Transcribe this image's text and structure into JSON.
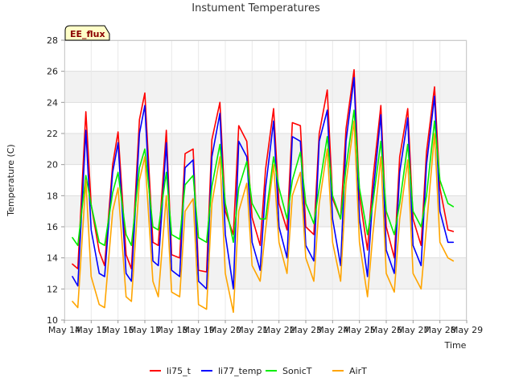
{
  "chart_data": {
    "type": "line",
    "title": "Instument Temperatures",
    "xlabel": "Time",
    "ylabel": "Temperature (C)",
    "badge": "EE_flux",
    "ylim": [
      10,
      28
    ],
    "yticks": [
      10,
      12,
      14,
      16,
      18,
      20,
      22,
      24,
      26,
      28
    ],
    "xlim": [
      14,
      29
    ],
    "xticks": [
      {
        "value": 14,
        "label": "May 14"
      },
      {
        "value": 15,
        "label": "May 15"
      },
      {
        "value": 16,
        "label": "May 16"
      },
      {
        "value": 17,
        "label": "May 17"
      },
      {
        "value": 18,
        "label": "May 18"
      },
      {
        "value": 19,
        "label": "May 19"
      },
      {
        "value": 20,
        "label": "May 20"
      },
      {
        "value": 21,
        "label": "May 21"
      },
      {
        "value": 22,
        "label": "May 22"
      },
      {
        "value": 23,
        "label": "May 23"
      },
      {
        "value": 24,
        "label": "May 24"
      },
      {
        "value": 25,
        "label": "May 25"
      },
      {
        "value": 26,
        "label": "May 26"
      },
      {
        "value": 27,
        "label": "May 27"
      },
      {
        "value": 28,
        "label": "May 28"
      },
      {
        "value": 29,
        "label": "May 29"
      }
    ],
    "grid": true,
    "legend_position": "bottom",
    "colors": {
      "li75_t": "#ff0000",
      "li77_temp": "#0000ff",
      "SonicT": "#00ee00",
      "AirT": "#ffa500"
    },
    "series": [
      {
        "name": "li75_t",
        "color": "#ff0000",
        "x": [
          14.3,
          14.5,
          14.8,
          15.0,
          15.3,
          15.5,
          15.8,
          16.0,
          16.3,
          16.5,
          16.8,
          17.0,
          17.3,
          17.5,
          17.8,
          18.0,
          18.3,
          18.5,
          18.8,
          19.0,
          19.3,
          19.5,
          19.8,
          20.0,
          20.3,
          20.5,
          20.8,
          21.0,
          21.3,
          21.5,
          21.8,
          22.0,
          22.3,
          22.5,
          22.8,
          23.0,
          23.3,
          23.5,
          23.8,
          24.0,
          24.3,
          24.5,
          24.8,
          25.0,
          25.3,
          25.5,
          25.8,
          26.0,
          26.3,
          26.5,
          26.8,
          27.0,
          27.3,
          27.5,
          27.8,
          28.0,
          28.3,
          28.5
        ],
        "y": [
          13.6,
          13.3,
          23.4,
          17.4,
          14.4,
          13.5,
          20.0,
          22.1,
          14.2,
          13.3,
          22.9,
          24.6,
          15.0,
          14.8,
          22.2,
          14.2,
          14.0,
          20.7,
          21.0,
          13.2,
          13.1,
          21.6,
          24.0,
          17.0,
          15.5,
          22.5,
          21.5,
          16.6,
          14.8,
          19.7,
          23.6,
          17.5,
          15.8,
          22.7,
          22.5,
          16.0,
          15.5,
          22.0,
          24.8,
          17.8,
          16.5,
          22.3,
          26.1,
          18.0,
          14.5,
          19.0,
          23.8,
          16.0,
          14.0,
          20.5,
          23.6,
          16.5,
          14.8,
          20.8,
          25.0,
          18.5,
          15.8,
          15.7
        ]
      },
      {
        "name": "li77_temp",
        "color": "#0000ff",
        "x": [
          14.3,
          14.5,
          14.8,
          15.0,
          15.3,
          15.5,
          15.8,
          16.0,
          16.3,
          16.5,
          16.8,
          17.0,
          17.3,
          17.5,
          17.8,
          18.0,
          18.3,
          18.5,
          18.8,
          19.0,
          19.3,
          19.5,
          19.8,
          20.0,
          20.3,
          20.5,
          20.8,
          21.0,
          21.3,
          21.5,
          21.8,
          22.0,
          22.3,
          22.5,
          22.8,
          23.0,
          23.3,
          23.5,
          23.8,
          24.0,
          24.3,
          24.5,
          24.8,
          25.0,
          25.3,
          25.5,
          25.8,
          26.0,
          26.3,
          26.5,
          26.8,
          27.0,
          27.3,
          27.5,
          27.8,
          28.0,
          28.3,
          28.5
        ],
        "y": [
          12.8,
          12.2,
          22.2,
          15.8,
          13.0,
          12.8,
          19.5,
          21.4,
          13.0,
          12.5,
          22.0,
          23.8,
          13.8,
          13.5,
          21.4,
          13.2,
          12.8,
          19.8,
          20.3,
          12.5,
          12.0,
          20.5,
          23.3,
          15.5,
          12.0,
          21.5,
          20.5,
          15.0,
          13.2,
          18.5,
          22.8,
          16.0,
          14.0,
          21.8,
          21.5,
          14.8,
          13.8,
          21.5,
          23.5,
          16.5,
          13.5,
          21.5,
          25.6,
          16.5,
          12.8,
          18.0,
          23.2,
          14.5,
          13.0,
          19.5,
          23.0,
          14.8,
          13.5,
          20.0,
          24.4,
          17.0,
          15.0,
          15.0
        ]
      },
      {
        "name": "SonicT",
        "color": "#00ee00",
        "x": [
          14.3,
          14.5,
          14.8,
          15.0,
          15.3,
          15.5,
          15.8,
          16.0,
          16.3,
          16.5,
          16.8,
          17.0,
          17.3,
          17.5,
          17.8,
          18.0,
          18.3,
          18.5,
          18.8,
          19.0,
          19.3,
          19.5,
          19.8,
          20.0,
          20.3,
          20.5,
          20.8,
          21.0,
          21.3,
          21.5,
          21.8,
          22.0,
          22.3,
          22.5,
          22.8,
          23.0,
          23.3,
          23.5,
          23.8,
          24.0,
          24.3,
          24.5,
          24.8,
          25.0,
          25.3,
          25.5,
          25.8,
          26.0,
          26.3,
          26.5,
          26.8,
          27.0,
          27.3,
          27.5,
          27.8,
          28.0,
          28.3,
          28.5
        ],
        "y": [
          15.3,
          14.8,
          19.3,
          17.4,
          15.0,
          14.8,
          18.2,
          19.5,
          15.5,
          14.8,
          19.8,
          21.0,
          16.0,
          15.8,
          19.5,
          15.5,
          15.2,
          18.7,
          19.3,
          15.3,
          15.0,
          18.6,
          21.3,
          17.5,
          15.0,
          18.5,
          20.2,
          17.5,
          16.5,
          16.5,
          20.5,
          18.5,
          16.5,
          19.0,
          20.8,
          17.5,
          16.2,
          18.5,
          21.8,
          18.0,
          16.5,
          19.8,
          23.5,
          18.5,
          15.5,
          17.5,
          21.5,
          17.0,
          15.5,
          17.5,
          21.3,
          17.0,
          16.0,
          18.0,
          22.8,
          19.0,
          17.5,
          17.3
        ]
      },
      {
        "name": "AirT",
        "color": "#ffa500",
        "x": [
          14.3,
          14.5,
          14.8,
          15.0,
          15.3,
          15.5,
          15.8,
          16.0,
          16.3,
          16.5,
          16.8,
          17.0,
          17.3,
          17.5,
          17.8,
          18.0,
          18.3,
          18.5,
          18.8,
          19.0,
          19.3,
          19.5,
          19.8,
          20.0,
          20.3,
          20.5,
          20.8,
          21.0,
          21.3,
          21.5,
          21.8,
          22.0,
          22.3,
          22.5,
          22.8,
          23.0,
          23.3,
          23.5,
          23.8,
          24.0,
          24.3,
          24.5,
          24.8,
          25.0,
          25.3,
          25.5,
          25.8,
          26.0,
          26.3,
          26.5,
          26.8,
          27.0,
          27.3,
          27.5,
          27.8,
          28.0,
          28.3,
          28.5
        ],
        "y": [
          11.2,
          10.8,
          19.0,
          12.8,
          11.0,
          10.8,
          17.0,
          18.5,
          11.5,
          11.2,
          19.0,
          20.5,
          12.5,
          11.5,
          18.0,
          11.8,
          11.5,
          17.0,
          17.8,
          11.0,
          10.7,
          17.5,
          20.5,
          13.0,
          10.5,
          17.0,
          18.8,
          13.5,
          12.5,
          15.8,
          20.0,
          15.0,
          13.0,
          18.0,
          19.5,
          14.0,
          12.5,
          17.5,
          21.0,
          15.0,
          12.5,
          18.8,
          22.8,
          15.0,
          11.5,
          15.5,
          20.5,
          13.0,
          11.8,
          16.5,
          20.3,
          13.0,
          12.0,
          16.0,
          22.0,
          15.0,
          14.0,
          13.8
        ]
      }
    ]
  }
}
